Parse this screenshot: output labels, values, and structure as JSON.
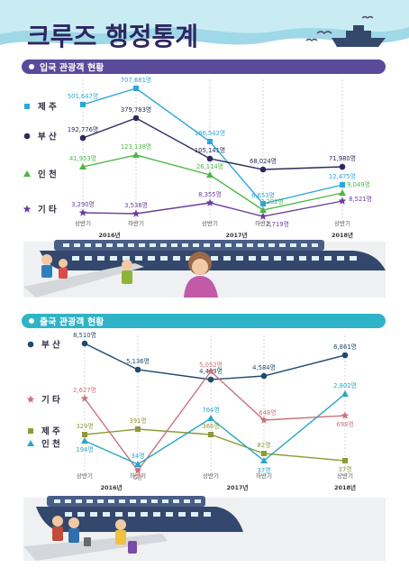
{
  "page_title": "크루즈 행정통계",
  "colors": {
    "sea": "#9fd8e6",
    "sea_light": "#c9ecf3",
    "title": "#2d2660",
    "band1": "#5a4a9a",
    "band2": "#2fb3c6",
    "ship": "#34476c",
    "ship_roof": "#4a5d86"
  },
  "icons": [
    "seagull-icon",
    "ship-icon",
    "cruise-ship-icon",
    "tourist-icon",
    "guide-woman-icon",
    "traveler-icon",
    "suitcase-icon"
  ],
  "chart_data": [
    {
      "type": "line",
      "title": "입국 관광객 현황",
      "x": [
        "상반기",
        "하반기",
        "상반기",
        "하반기",
        "상반기"
      ],
      "years": [
        {
          "label": "2016년",
          "span": [
            0,
            1
          ]
        },
        {
          "label": "2017년",
          "span": [
            2,
            3
          ]
        },
        {
          "label": "2018년",
          "span": [
            4,
            4
          ]
        }
      ],
      "grid": true,
      "legend_position": "left",
      "series": [
        {
          "name": "제주",
          "marker": "square",
          "color": "#2aa7d8",
          "values": [
            501647,
            707681,
            186542,
            6653,
            12475
          ],
          "labels": [
            "501,647명",
            "707,681명",
            "186,542명",
            "6,653명",
            "12,475명"
          ]
        },
        {
          "name": "부산",
          "marker": "circle",
          "color": "#2d2a5e",
          "values": [
            192776,
            379783,
            105141,
            68024,
            71980
          ],
          "labels": [
            "192,776명",
            "379,783명",
            "105,141명",
            "68,024명",
            "71,980명"
          ]
        },
        {
          "name": "인천",
          "marker": "triangle",
          "color": "#4fb548",
          "values": [
            41953,
            123138,
            26114,
            3292,
            9049
          ],
          "labels": [
            "41,953명",
            "123,138명",
            "26,114명",
            "3,292명",
            "9,049명"
          ]
        },
        {
          "name": "기타",
          "marker": "star",
          "color": "#6a3d9a",
          "values": [
            3290,
            3538,
            8355,
            2719,
            8521
          ],
          "labels": [
            "3,290명",
            "3,538명",
            "8,355명",
            "2,719명",
            "8,521명"
          ]
        }
      ]
    },
    {
      "type": "line",
      "title": "출국 관광객 현황",
      "x": [
        "상반기",
        "하반기",
        "상반기",
        "하반기",
        "상반기"
      ],
      "years": [
        {
          "label": "2016년",
          "span": [
            0,
            1
          ]
        },
        {
          "label": "2017년",
          "span": [
            2,
            3
          ]
        },
        {
          "label": "2018년",
          "span": [
            4,
            4
          ]
        }
      ],
      "grid": true,
      "legend_position": "left",
      "series": [
        {
          "name": "부산",
          "marker": "circle",
          "color": "#1f4a6e",
          "values": [
            8510,
            5136,
            4483,
            4584,
            6861
          ],
          "labels": [
            "8,510명",
            "5,136명",
            "4,483명",
            "4,584명",
            "6,861명"
          ]
        },
        {
          "name": "기타",
          "marker": "star",
          "color": "#c9727a",
          "values": [
            2627,
            1,
            5052,
            648,
            698
          ],
          "labels": [
            "2,627명",
            "1명",
            "5,052명",
            "648명",
            "698명"
          ]
        },
        {
          "name": "제주",
          "marker": "square",
          "color": "#8f9a3a",
          "values": [
            329,
            391,
            366,
            82,
            37
          ],
          "labels": [
            "329명",
            "391명",
            "366명",
            "82명",
            "37명"
          ]
        },
        {
          "name": "인천",
          "marker": "triangle",
          "color": "#2aa7c0",
          "values": [
            194,
            34,
            764,
            37,
            2802
          ],
          "labels": [
            "194명",
            "34명",
            "764명",
            "37명",
            "2,802명"
          ]
        }
      ]
    }
  ]
}
